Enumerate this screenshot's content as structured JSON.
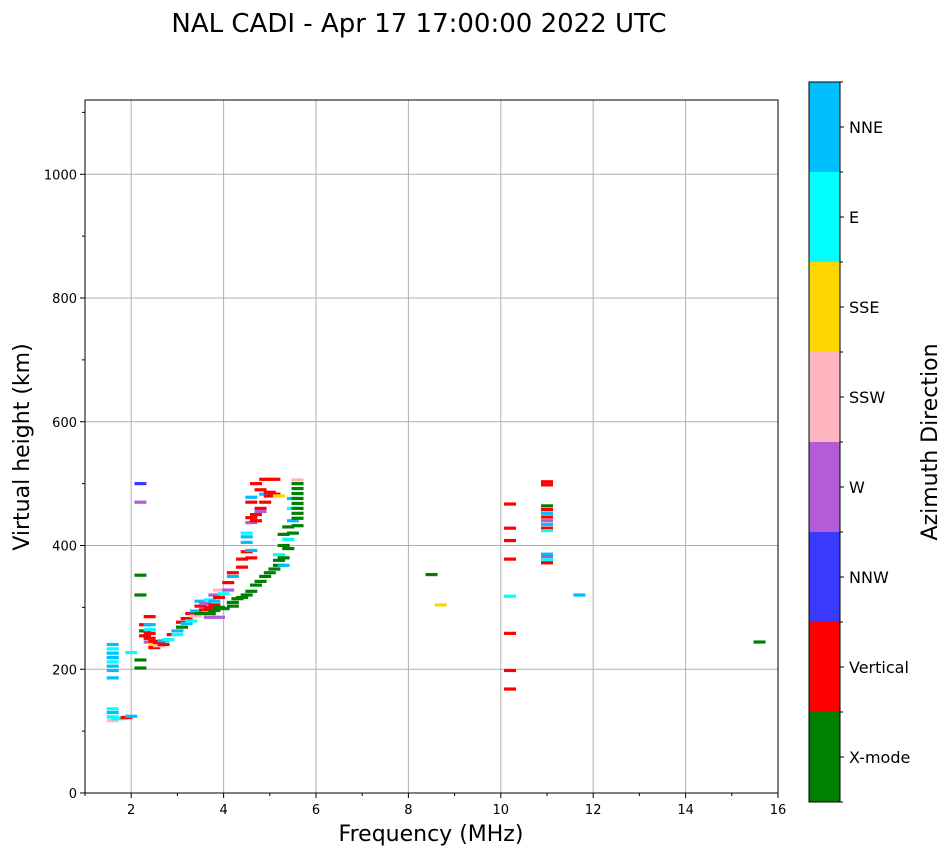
{
  "chart_data": {
    "type": "scatter",
    "title": "NAL CADI - Apr 17 17:00:00 2022 UTC",
    "xlabel": "Frequency (MHz)",
    "ylabel": "Virtual height (km)",
    "xlim": [
      1,
      16
    ],
    "ylim": [
      0,
      1120
    ],
    "xticks": [
      2,
      4,
      6,
      8,
      10,
      12,
      14,
      16
    ],
    "yticks": [
      0,
      200,
      400,
      600,
      800,
      1000
    ],
    "grid": true,
    "colorbar": {
      "label": "Azimuth Direction",
      "categories": [
        {
          "name": "X-mode",
          "color": "#008000"
        },
        {
          "name": "Vertical",
          "color": "#ff0000"
        },
        {
          "name": "NNW",
          "color": "#3a3aff"
        },
        {
          "name": "W",
          "color": "#b45bd6"
        },
        {
          "name": "SSW",
          "color": "#ffb6c1"
        },
        {
          "name": "SSE",
          "color": "#ffd700"
        },
        {
          "name": "E",
          "color": "#00ffff"
        },
        {
          "name": "NNE",
          "color": "#00bfff"
        }
      ]
    },
    "points": [
      {
        "f": 1.6,
        "h": 240,
        "c": "NNE"
      },
      {
        "f": 1.6,
        "h": 233,
        "c": "E"
      },
      {
        "f": 1.6,
        "h": 226,
        "c": "NNE"
      },
      {
        "f": 1.6,
        "h": 219,
        "c": "NNE"
      },
      {
        "f": 1.6,
        "h": 212,
        "c": "E"
      },
      {
        "f": 1.6,
        "h": 205,
        "c": "NNE"
      },
      {
        "f": 1.6,
        "h": 198,
        "c": "NNE"
      },
      {
        "f": 1.6,
        "h": 186,
        "c": "NNE"
      },
      {
        "f": 1.6,
        "h": 136,
        "c": "E"
      },
      {
        "f": 1.6,
        "h": 130,
        "c": "NNE"
      },
      {
        "f": 1.6,
        "h": 123,
        "c": "E"
      },
      {
        "f": 1.6,
        "h": 117,
        "c": "SSW"
      },
      {
        "f": 1.7,
        "h": 120,
        "c": "E"
      },
      {
        "f": 1.8,
        "h": 121,
        "c": "E"
      },
      {
        "f": 1.9,
        "h": 122,
        "c": "Vertical"
      },
      {
        "f": 2.0,
        "h": 124,
        "c": "NNE"
      },
      {
        "f": 2.0,
        "h": 227,
        "c": "E"
      },
      {
        "f": 2.2,
        "h": 500,
        "c": "NNW"
      },
      {
        "f": 2.2,
        "h": 470,
        "c": "W"
      },
      {
        "f": 2.2,
        "h": 352,
        "c": "X-mode"
      },
      {
        "f": 2.2,
        "h": 320,
        "c": "X-mode"
      },
      {
        "f": 2.2,
        "h": 215,
        "c": "X-mode"
      },
      {
        "f": 2.2,
        "h": 202,
        "c": "X-mode"
      },
      {
        "f": 2.3,
        "h": 272,
        "c": "Vertical"
      },
      {
        "f": 2.3,
        "h": 262,
        "c": "X-mode"
      },
      {
        "f": 2.3,
        "h": 254,
        "c": "Vertical"
      },
      {
        "f": 2.4,
        "h": 285,
        "c": "Vertical"
      },
      {
        "f": 2.4,
        "h": 272,
        "c": "NNE"
      },
      {
        "f": 2.4,
        "h": 264,
        "c": "E"
      },
      {
        "f": 2.4,
        "h": 258,
        "c": "Vertical"
      },
      {
        "f": 2.4,
        "h": 250,
        "c": "Vertical"
      },
      {
        "f": 2.4,
        "h": 244,
        "c": "W"
      },
      {
        "f": 2.5,
        "h": 245,
        "c": "Vertical"
      },
      {
        "f": 2.5,
        "h": 240,
        "c": "SSE"
      },
      {
        "f": 2.5,
        "h": 235,
        "c": "Vertical"
      },
      {
        "f": 2.6,
        "h": 243,
        "c": "Vertical"
      },
      {
        "f": 2.6,
        "h": 238,
        "c": "SSW"
      },
      {
        "f": 2.7,
        "h": 246,
        "c": "NNE"
      },
      {
        "f": 2.7,
        "h": 240,
        "c": "Vertical"
      },
      {
        "f": 2.8,
        "h": 248,
        "c": "E"
      },
      {
        "f": 2.9,
        "h": 256,
        "c": "Vertical"
      },
      {
        "f": 3.0,
        "h": 262,
        "c": "NNE"
      },
      {
        "f": 3.0,
        "h": 256,
        "c": "E"
      },
      {
        "f": 3.1,
        "h": 268,
        "c": "X-mode"
      },
      {
        "f": 3.1,
        "h": 276,
        "c": "Vertical"
      },
      {
        "f": 3.2,
        "h": 274,
        "c": "NNE"
      },
      {
        "f": 3.2,
        "h": 282,
        "c": "Vertical"
      },
      {
        "f": 3.3,
        "h": 278,
        "c": "E"
      },
      {
        "f": 3.3,
        "h": 290,
        "c": "Vertical"
      },
      {
        "f": 3.4,
        "h": 286,
        "c": "SSW"
      },
      {
        "f": 3.4,
        "h": 294,
        "c": "NNE"
      },
      {
        "f": 3.5,
        "h": 290,
        "c": "X-mode"
      },
      {
        "f": 3.5,
        "h": 302,
        "c": "Vertical"
      },
      {
        "f": 3.5,
        "h": 310,
        "c": "NNE"
      },
      {
        "f": 3.6,
        "h": 296,
        "c": "Vertical"
      },
      {
        "f": 3.6,
        "h": 306,
        "c": "W"
      },
      {
        "f": 3.7,
        "h": 290,
        "c": "X-mode"
      },
      {
        "f": 3.7,
        "h": 300,
        "c": "Vertical"
      },
      {
        "f": 3.7,
        "h": 312,
        "c": "E"
      },
      {
        "f": 3.7,
        "h": 284,
        "c": "W"
      },
      {
        "f": 3.8,
        "h": 295,
        "c": "X-mode"
      },
      {
        "f": 3.8,
        "h": 310,
        "c": "NNE"
      },
      {
        "f": 3.8,
        "h": 320,
        "c": "W"
      },
      {
        "f": 3.8,
        "h": 304,
        "c": "Vertical"
      },
      {
        "f": 3.9,
        "h": 300,
        "c": "X-mode"
      },
      {
        "f": 3.9,
        "h": 316,
        "c": "Vertical"
      },
      {
        "f": 3.9,
        "h": 328,
        "c": "SSW"
      },
      {
        "f": 3.9,
        "h": 284,
        "c": "W"
      },
      {
        "f": 4.0,
        "h": 298,
        "c": "X-mode"
      },
      {
        "f": 4.0,
        "h": 322,
        "c": "E"
      },
      {
        "f": 4.1,
        "h": 340,
        "c": "Vertical"
      },
      {
        "f": 4.1,
        "h": 328,
        "c": "W"
      },
      {
        "f": 4.2,
        "h": 302,
        "c": "X-mode"
      },
      {
        "f": 4.2,
        "h": 308,
        "c": "X-mode"
      },
      {
        "f": 4.2,
        "h": 356,
        "c": "Vertical"
      },
      {
        "f": 4.2,
        "h": 350,
        "c": "NNE"
      },
      {
        "f": 4.3,
        "h": 314,
        "c": "X-mode"
      },
      {
        "f": 4.4,
        "h": 316,
        "c": "X-mode"
      },
      {
        "f": 4.4,
        "h": 365,
        "c": "Vertical"
      },
      {
        "f": 4.4,
        "h": 378,
        "c": "Vertical"
      },
      {
        "f": 4.5,
        "h": 320,
        "c": "X-mode"
      },
      {
        "f": 4.5,
        "h": 390,
        "c": "Vertical"
      },
      {
        "f": 4.5,
        "h": 405,
        "c": "NNE"
      },
      {
        "f": 4.5,
        "h": 414,
        "c": "NNE"
      },
      {
        "f": 4.5,
        "h": 420,
        "c": "E"
      },
      {
        "f": 4.6,
        "h": 326,
        "c": "X-mode"
      },
      {
        "f": 4.6,
        "h": 380,
        "c": "Vertical"
      },
      {
        "f": 4.6,
        "h": 392,
        "c": "NNE"
      },
      {
        "f": 4.6,
        "h": 445,
        "c": "Vertical"
      },
      {
        "f": 4.6,
        "h": 437,
        "c": "W"
      },
      {
        "f": 4.6,
        "h": 470,
        "c": "Vertical"
      },
      {
        "f": 4.6,
        "h": 478,
        "c": "NNE"
      },
      {
        "f": 4.7,
        "h": 336,
        "c": "X-mode"
      },
      {
        "f": 4.7,
        "h": 450,
        "c": "Vertical"
      },
      {
        "f": 4.7,
        "h": 440,
        "c": "Vertical"
      },
      {
        "f": 4.7,
        "h": 500,
        "c": "Vertical"
      },
      {
        "f": 4.8,
        "h": 342,
        "c": "X-mode"
      },
      {
        "f": 4.8,
        "h": 460,
        "c": "Vertical"
      },
      {
        "f": 4.8,
        "h": 455,
        "c": "W"
      },
      {
        "f": 4.8,
        "h": 490,
        "c": "Vertical"
      },
      {
        "f": 4.9,
        "h": 350,
        "c": "X-mode"
      },
      {
        "f": 4.9,
        "h": 470,
        "c": "Vertical"
      },
      {
        "f": 4.9,
        "h": 483,
        "c": "NNE"
      },
      {
        "f": 4.9,
        "h": 507,
        "c": "Vertical"
      },
      {
        "f": 5.0,
        "h": 356,
        "c": "X-mode"
      },
      {
        "f": 5.0,
        "h": 486,
        "c": "Vertical"
      },
      {
        "f": 5.0,
        "h": 480,
        "c": "Vertical"
      },
      {
        "f": 5.1,
        "h": 362,
        "c": "X-mode"
      },
      {
        "f": 5.1,
        "h": 507,
        "c": "Vertical"
      },
      {
        "f": 5.1,
        "h": 483,
        "c": "Vertical"
      },
      {
        "f": 5.2,
        "h": 368,
        "c": "X-mode"
      },
      {
        "f": 5.2,
        "h": 376,
        "c": "X-mode"
      },
      {
        "f": 5.2,
        "h": 385,
        "c": "E"
      },
      {
        "f": 5.2,
        "h": 480,
        "c": "SSE"
      },
      {
        "f": 5.3,
        "h": 380,
        "c": "X-mode"
      },
      {
        "f": 5.3,
        "h": 400,
        "c": "X-mode"
      },
      {
        "f": 5.3,
        "h": 418,
        "c": "X-mode"
      },
      {
        "f": 5.3,
        "h": 368,
        "c": "NNE"
      },
      {
        "f": 5.4,
        "h": 430,
        "c": "X-mode"
      },
      {
        "f": 5.4,
        "h": 410,
        "c": "E"
      },
      {
        "f": 5.4,
        "h": 395,
        "c": "X-mode"
      },
      {
        "f": 5.5,
        "h": 440,
        "c": "NNE"
      },
      {
        "f": 5.5,
        "h": 420,
        "c": "X-mode"
      },
      {
        "f": 5.5,
        "h": 460,
        "c": "E"
      },
      {
        "f": 5.5,
        "h": 476,
        "c": "NNE"
      },
      {
        "f": 5.6,
        "h": 500,
        "c": "X-mode"
      },
      {
        "f": 5.6,
        "h": 492,
        "c": "X-mode"
      },
      {
        "f": 5.6,
        "h": 484,
        "c": "X-mode"
      },
      {
        "f": 5.6,
        "h": 476,
        "c": "X-mode"
      },
      {
        "f": 5.6,
        "h": 468,
        "c": "X-mode"
      },
      {
        "f": 5.6,
        "h": 460,
        "c": "X-mode"
      },
      {
        "f": 5.6,
        "h": 452,
        "c": "X-mode"
      },
      {
        "f": 5.6,
        "h": 444,
        "c": "X-mode"
      },
      {
        "f": 5.6,
        "h": 432,
        "c": "X-mode"
      },
      {
        "f": 5.6,
        "h": 506,
        "c": "SSW"
      },
      {
        "f": 8.5,
        "h": 353,
        "c": "X-mode"
      },
      {
        "f": 8.7,
        "h": 304,
        "c": "SSE"
      },
      {
        "f": 10.2,
        "h": 467,
        "c": "Vertical"
      },
      {
        "f": 10.2,
        "h": 428,
        "c": "Vertical"
      },
      {
        "f": 10.2,
        "h": 408,
        "c": "Vertical"
      },
      {
        "f": 10.2,
        "h": 378,
        "c": "Vertical"
      },
      {
        "f": 10.2,
        "h": 318,
        "c": "E"
      },
      {
        "f": 10.2,
        "h": 258,
        "c": "Vertical"
      },
      {
        "f": 10.2,
        "h": 198,
        "c": "Vertical"
      },
      {
        "f": 10.2,
        "h": 168,
        "c": "Vertical"
      },
      {
        "f": 11.0,
        "h": 503,
        "c": "Vertical"
      },
      {
        "f": 11.0,
        "h": 498,
        "c": "Vertical"
      },
      {
        "f": 11.0,
        "h": 464,
        "c": "X-mode"
      },
      {
        "f": 11.0,
        "h": 458,
        "c": "Vertical"
      },
      {
        "f": 11.0,
        "h": 452,
        "c": "NNE"
      },
      {
        "f": 11.0,
        "h": 446,
        "c": "Vertical"
      },
      {
        "f": 11.0,
        "h": 440,
        "c": "W"
      },
      {
        "f": 11.0,
        "h": 434,
        "c": "NNE"
      },
      {
        "f": 11.0,
        "h": 428,
        "c": "Vertical"
      },
      {
        "f": 11.0,
        "h": 424,
        "c": "E"
      },
      {
        "f": 11.0,
        "h": 386,
        "c": "NNE"
      },
      {
        "f": 11.0,
        "h": 382,
        "c": "W"
      },
      {
        "f": 11.0,
        "h": 377,
        "c": "E"
      },
      {
        "f": 11.0,
        "h": 372,
        "c": "Vertical"
      },
      {
        "f": 11.7,
        "h": 320,
        "c": "NNE"
      },
      {
        "f": 15.6,
        "h": 244,
        "c": "X-mode"
      }
    ]
  }
}
